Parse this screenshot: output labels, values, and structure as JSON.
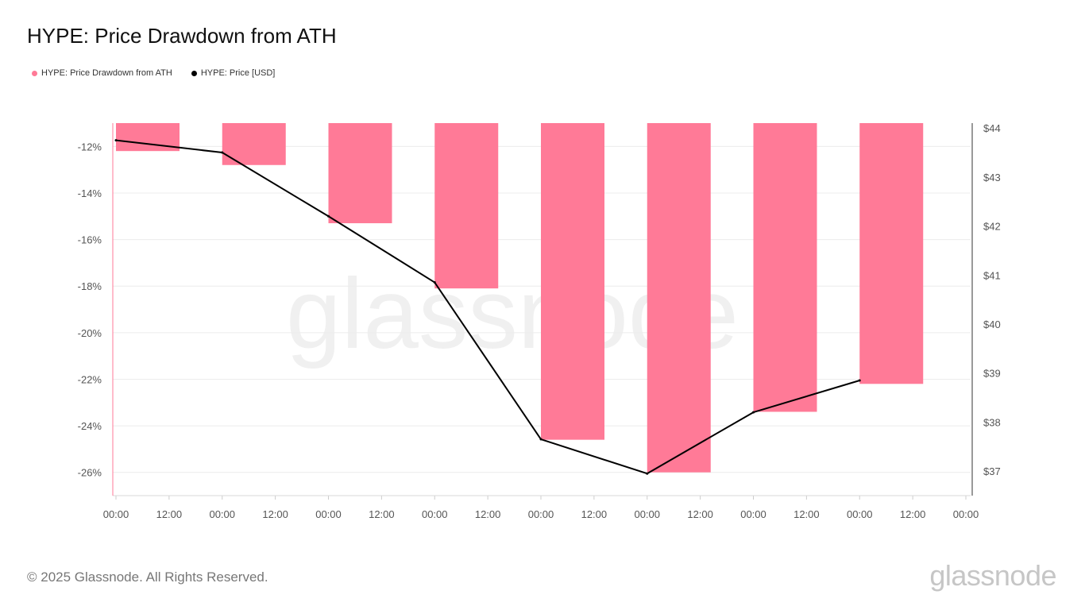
{
  "chart_data": {
    "type": "bar",
    "title": "HYPE: Price Drawdown from ATH",
    "legend_placement": "top-left",
    "grid": true,
    "x_tick_labels": [
      "00:00",
      "12:00",
      "00:00",
      "12:00",
      "00:00",
      "12:00",
      "00:00",
      "12:00",
      "00:00",
      "12:00",
      "00:00",
      "12:00",
      "00:00",
      "12:00",
      "00:00",
      "12:00",
      "00:00"
    ],
    "y_left": {
      "ticks": [
        -12,
        -14,
        -16,
        -18,
        -20,
        -22,
        -24,
        -26
      ],
      "tick_labels": [
        "-12%",
        "-14%",
        "-16%",
        "-18%",
        "-20%",
        "-22%",
        "-24%",
        "-26%"
      ],
      "range": [
        -27.0,
        -11.0
      ]
    },
    "y_right": {
      "ticks": [
        37,
        38,
        39,
        40,
        41,
        42,
        43,
        44
      ],
      "tick_labels": [
        "$37",
        "$38",
        "$39",
        "$40",
        "$41",
        "$42",
        "$43",
        "$44"
      ],
      "range": [
        36.5,
        44.1
      ]
    },
    "series": [
      {
        "name": "HYPE: Price Drawdown from ATH",
        "type": "bar",
        "axis": "left",
        "color": "#ff7a97",
        "x": [
          0,
          1,
          2,
          3,
          4,
          5,
          6,
          7
        ],
        "values": [
          -12.2,
          -12.8,
          -15.3,
          -18.1,
          -24.6,
          -26.0,
          -23.4,
          -22.2
        ]
      },
      {
        "name": "HYPE: Price [USD]",
        "type": "line",
        "axis": "right",
        "color": "#000000",
        "x": [
          0,
          1,
          2,
          3,
          4,
          5,
          6,
          7
        ],
        "values": [
          43.75,
          43.5,
          42.2,
          40.85,
          37.65,
          36.95,
          38.2,
          38.85
        ]
      }
    ]
  },
  "watermark": "glassnode",
  "footer": {
    "copyright": "© 2025 Glassnode. All Rights Reserved.",
    "brand": "glassnode"
  }
}
